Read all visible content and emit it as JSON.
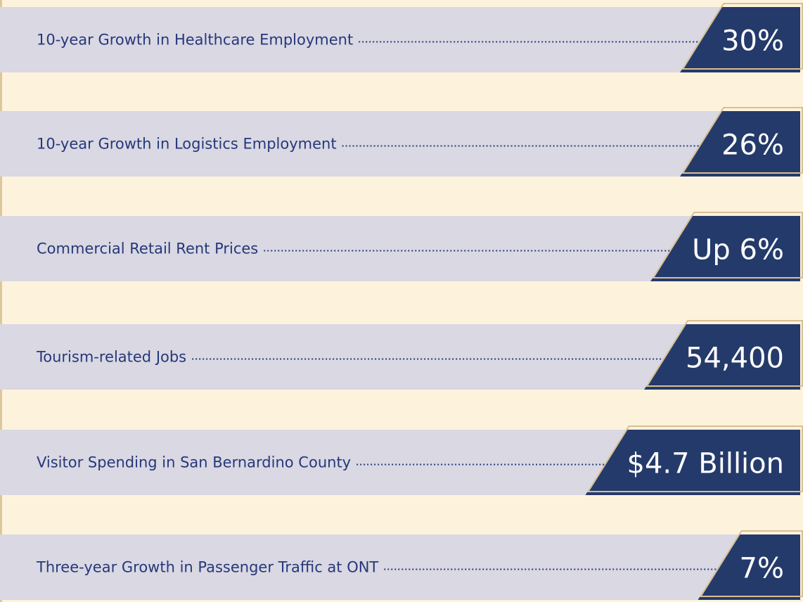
{
  "items": [
    {
      "label": "10-year Growth in Healthcare Employment",
      "value": "30%"
    },
    {
      "label": "10-year Growth in Logistics Employment",
      "value": "26%"
    },
    {
      "label": "Commercial Retail Rent Prices",
      "value": "Up 6%"
    },
    {
      "label": "Tourism-related Jobs",
      "value": "54,400"
    },
    {
      "label": "Visitor Spending in San Bernardino County",
      "value": "$4.7 Billion"
    },
    {
      "label": "Three-year Growth in Passenger Traffic at ONT",
      "value": "7%"
    }
  ]
}
